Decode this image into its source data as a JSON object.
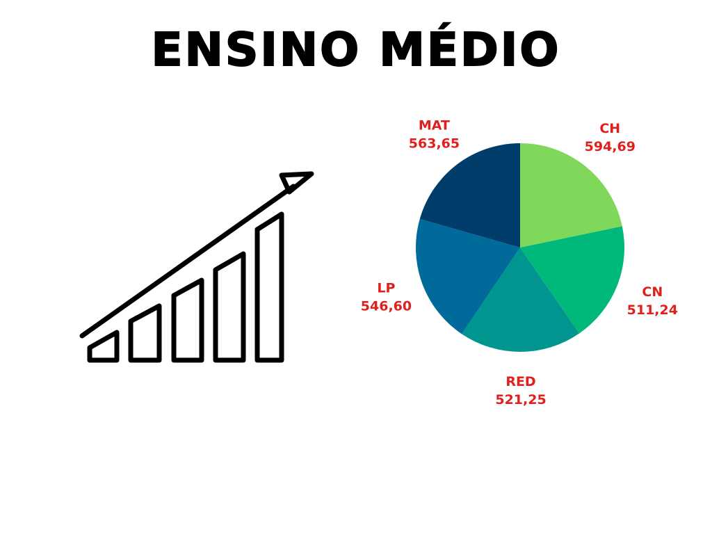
{
  "title": "ENSINO MÉDIO",
  "icon": "bar-growth-arrow-icon",
  "chart_data": {
    "type": "pie",
    "slices": [
      {
        "label": "CH",
        "value": 594.69,
        "display": "594,69",
        "color": "#7fd85a"
      },
      {
        "label": "CN",
        "value": 511.24,
        "display": "511,24",
        "color": "#00b87a"
      },
      {
        "label": "RED",
        "value": 521.25,
        "display": "521,25",
        "color": "#00958f"
      },
      {
        "label": "LP",
        "value": 546.6,
        "display": "546,60",
        "color": "#006a9a"
      },
      {
        "label": "MAT",
        "value": 563.65,
        "display": "563,65",
        "color": "#003d6b"
      }
    ],
    "label_color": "#e0201c",
    "legend": "none"
  }
}
